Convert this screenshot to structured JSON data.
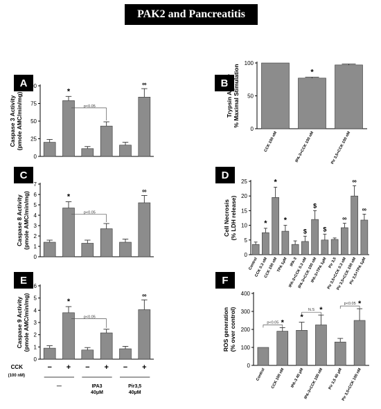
{
  "title": "PAK2 and Pancreatitis",
  "colors": {
    "bar": "#8c8c8c",
    "bar_stroke": "#333333",
    "axis": "#000000"
  },
  "chart_data": [
    {
      "panel": "A",
      "type": "bar",
      "ylabel": "Caspase 3 Activity\n(pmole AMC/min/mg)",
      "ylim": [
        0,
        100
      ],
      "yticks": [
        0,
        25,
        50,
        75,
        100
      ],
      "values": [
        20,
        79,
        11,
        43,
        16,
        84
      ],
      "errors": [
        4,
        6,
        3,
        6,
        4,
        12
      ],
      "markers": [
        "",
        "*",
        "",
        "",
        "",
        "∞"
      ],
      "bracket": {
        "from": 1,
        "to": 3,
        "label": "p<0.05"
      }
    },
    {
      "panel": "B",
      "type": "bar",
      "ylabel": "Trypsin Activity\n% Maximal Stimulation",
      "ylim": [
        0,
        100
      ],
      "yticks": [
        0,
        50,
        100
      ],
      "categories": [
        "CCK 100 nM",
        "IPA-3+CCK 100 nM",
        "Pir 3,5+CCK 100 nM"
      ],
      "values": [
        100,
        77,
        97
      ],
      "errors": [
        0,
        1.5,
        1.5
      ],
      "markers": [
        "",
        "*",
        ""
      ]
    },
    {
      "panel": "C",
      "type": "bar",
      "ylabel": "Caspase 8 Activity\n(pmole AMC/min/mg)",
      "ylim": [
        0,
        7
      ],
      "yticks": [
        0,
        1,
        2,
        3,
        4,
        5,
        6,
        7
      ],
      "values": [
        1.4,
        4.7,
        1.3,
        2.7,
        1.4,
        5.2
      ],
      "errors": [
        0.2,
        0.6,
        0.3,
        0.5,
        0.3,
        0.7
      ],
      "markers": [
        "",
        "*",
        "",
        "",
        "",
        "∞"
      ],
      "bracket": {
        "from": 1,
        "to": 3,
        "label": "p<0.05"
      }
    },
    {
      "panel": "D",
      "type": "bar",
      "ylabel": "Cell Necrosis\n(% LDH release)",
      "ylim": [
        0,
        25
      ],
      "yticks": [
        0,
        5,
        10,
        15,
        20,
        25
      ],
      "categories": [
        "Control",
        "CCK 0.3 nM",
        "CCK 100 nM",
        "TPA 1μM",
        "IPA-3",
        "IPA-3+CCK 0.3 nM",
        "IPA-3+CCK 100 nM",
        "IPA-3+TPA 1μM",
        "Pir 3,5",
        "Pir 3,5+CCK 0.3 nM",
        "Pir 3,5+CCK 100 nM",
        "Pir 3,5+TPA 1μM"
      ],
      "values": [
        3.5,
        7.5,
        19.5,
        8,
        3.5,
        4.5,
        12,
        5,
        5.2,
        9.2,
        20,
        11.8
      ],
      "errors": [
        0.8,
        1.5,
        3.5,
        2,
        1.2,
        1.8,
        3,
        2,
        0.5,
        1.5,
        3.5,
        2
      ],
      "markers": [
        "",
        "*",
        "*",
        "*",
        "",
        "$",
        "$",
        "$",
        "",
        "∞",
        "∞",
        "∞"
      ]
    },
    {
      "panel": "E",
      "type": "bar",
      "ylabel": "Caspase 9 Activity\n(pmole AMC/min/mg)",
      "ylim": [
        0,
        6
      ],
      "yticks": [
        0,
        1,
        2,
        3,
        4,
        5,
        6
      ],
      "values": [
        0.9,
        3.8,
        0.75,
        2.15,
        0.85,
        4.05
      ],
      "errors": [
        0.2,
        0.5,
        0.2,
        0.3,
        0.2,
        0.8
      ],
      "markers": [
        "",
        "*",
        "",
        "",
        "",
        "∞"
      ],
      "bracket": {
        "from": 1,
        "to": 3,
        "label": "p<0.05"
      },
      "cck_label": "CCK",
      "cck_unit": "(100 nM)",
      "cck_signs": [
        "−",
        "+",
        "−",
        "+",
        "−",
        "+"
      ],
      "groups": [
        {
          "label": "—",
          "sub": ""
        },
        {
          "label": "IPA3",
          "sub": "40μM"
        },
        {
          "label": "Pir3,5",
          "sub": "40μM"
        }
      ]
    },
    {
      "panel": "F",
      "type": "bar",
      "ylabel": "ROS generation\n(% over control)",
      "ylim": [
        0,
        400
      ],
      "yticks": [
        0,
        100,
        200,
        300,
        400
      ],
      "categories": [
        "Control",
        "CCK 100 nM",
        "IPA-3 40 μM",
        "IPA-3+CCK 100 nM",
        "Pir 3,5 40 μM",
        "Pir 3,5+CCK 100 nM"
      ],
      "values": [
        100,
        190,
        195,
        225,
        130,
        250
      ],
      "errors": [
        0,
        20,
        45,
        55,
        20,
        65
      ],
      "markers": [
        "",
        "*",
        "*",
        "*",
        "",
        "*"
      ],
      "brackets": [
        {
          "from": 0,
          "to": 1,
          "label": "p<0.05"
        },
        {
          "from": 2,
          "to": 3,
          "label": "N.S"
        },
        {
          "from": 4,
          "to": 5,
          "label": "p<0.05"
        }
      ]
    }
  ]
}
